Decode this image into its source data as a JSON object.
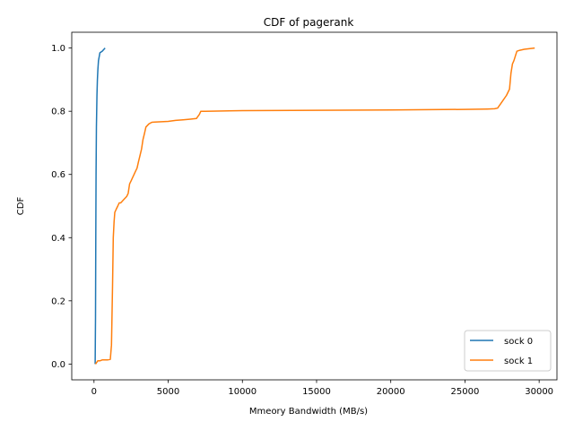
{
  "chart_data": {
    "type": "line",
    "title": "CDF of pagerank",
    "xlabel": "Mmeory Bandwidth (MB/s)",
    "ylabel": "CDF",
    "xlim": [
      -1500,
      31200
    ],
    "ylim": [
      -0.05,
      1.05
    ],
    "xticks": [
      0,
      5000,
      10000,
      15000,
      20000,
      25000,
      30000
    ],
    "yticks": [
      0.0,
      0.2,
      0.4,
      0.6,
      0.8,
      1.0
    ],
    "xtick_labels": [
      "0",
      "5000",
      "10000",
      "15000",
      "20000",
      "25000",
      "30000"
    ],
    "ytick_labels": [
      "0.0",
      "0.2",
      "0.4",
      "0.6",
      "0.8",
      "1.0"
    ],
    "grid": false,
    "legend_position": "lower-right",
    "series": [
      {
        "name": "sock 0",
        "color": "#1f77b4",
        "x": [
          80,
          100,
          120,
          140,
          160,
          180,
          200,
          230,
          260,
          300,
          400,
          550,
          750
        ],
        "y": [
          0.0,
          0.15,
          0.4,
          0.6,
          0.75,
          0.8,
          0.85,
          0.9,
          0.93,
          0.96,
          0.985,
          0.99,
          1.0
        ]
      },
      {
        "name": "sock 1",
        "color": "#ff7f0e",
        "x": [
          100,
          250,
          400,
          550,
          700,
          900,
          1100,
          1180,
          1250,
          1300,
          1350,
          1400,
          1500,
          1600,
          1700,
          1800,
          2000,
          2200,
          2300,
          2400,
          2500,
          2600,
          2700,
          2800,
          2900,
          3000,
          3100,
          3200,
          3300,
          3400,
          3500,
          3700,
          3900,
          4100,
          5000,
          5500,
          6000,
          6500,
          6900,
          7100,
          7200,
          7500,
          10000,
          15000,
          20000,
          25000,
          26500,
          27000,
          27200,
          27500,
          27800,
          28000,
          28100,
          28200,
          28300,
          28500,
          28700,
          29000,
          29700
        ],
        "y": [
          0.0,
          0.01,
          0.01,
          0.013,
          0.013,
          0.013,
          0.015,
          0.06,
          0.25,
          0.4,
          0.45,
          0.48,
          0.49,
          0.5,
          0.51,
          0.51,
          0.52,
          0.53,
          0.54,
          0.57,
          0.58,
          0.59,
          0.6,
          0.61,
          0.62,
          0.64,
          0.66,
          0.68,
          0.71,
          0.73,
          0.75,
          0.76,
          0.765,
          0.766,
          0.768,
          0.771,
          0.773,
          0.775,
          0.777,
          0.79,
          0.8,
          0.8,
          0.802,
          0.803,
          0.804,
          0.806,
          0.807,
          0.808,
          0.81,
          0.83,
          0.85,
          0.87,
          0.92,
          0.95,
          0.96,
          0.99,
          0.993,
          0.996,
          1.0
        ]
      }
    ]
  }
}
